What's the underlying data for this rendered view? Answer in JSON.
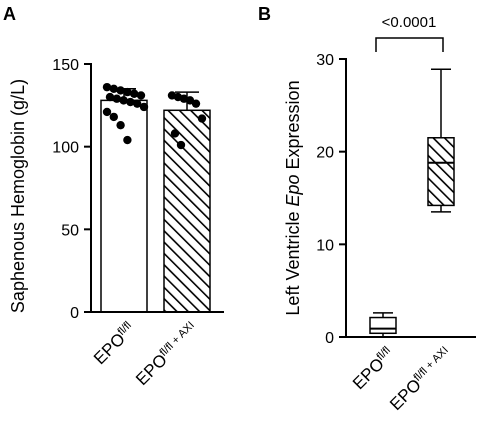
{
  "chart_data": [
    {
      "panel_label": "A",
      "type": "bar",
      "ylabel": "Saphenous Hemoglobin (g/L)",
      "ylim": [
        0,
        150
      ],
      "yticks": [
        0,
        50,
        100,
        150
      ],
      "categories": [
        {
          "base": "EPO",
          "sup": "fl/fl",
          "hatched": false
        },
        {
          "base": "EPO",
          "sup": "fl/fl + AXI",
          "hatched": true
        }
      ],
      "values": [
        128,
        122
      ],
      "error_sd": [
        7,
        11
      ],
      "points": [
        [
          136,
          135,
          134,
          133,
          132,
          131,
          130,
          129,
          128,
          127,
          126,
          124,
          121,
          118,
          113,
          104
        ],
        [
          131,
          130,
          129,
          128,
          126,
          117,
          108,
          101
        ]
      ]
    },
    {
      "panel_label": "B",
      "type": "box",
      "ylabel_parts": [
        "Left Ventricle ",
        "Epo",
        " Expression"
      ],
      "ylim": [
        0,
        30
      ],
      "yticks": [
        0,
        10,
        20,
        30
      ],
      "categories": [
        {
          "base": "EPO",
          "sup": "fl/fl",
          "hatched": false
        },
        {
          "base": "EPO",
          "sup": "fl/fl + AXI",
          "hatched": true
        }
      ],
      "boxes": [
        {
          "min": 0.0,
          "q1": 0.4,
          "median": 0.9,
          "q3": 2.1,
          "max": 2.6
        },
        {
          "min": 13.5,
          "q1": 14.2,
          "median": 18.8,
          "q3": 21.5,
          "max": 28.9
        }
      ],
      "annotation": "<0.0001"
    }
  ]
}
